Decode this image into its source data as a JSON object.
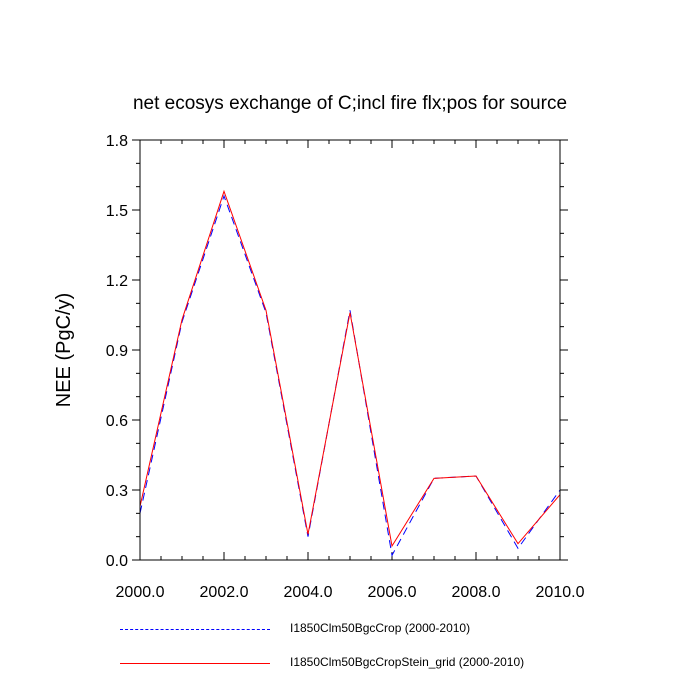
{
  "chart_data": {
    "type": "line",
    "title": "net ecosys exchange of C;incl fire flx;pos for source",
    "xlabel": "",
    "ylabel": "NEE  (PgC/y)",
    "xlim": [
      2000,
      2010
    ],
    "ylim": [
      0,
      1.8
    ],
    "xticks": [
      "2000.0",
      "2002.0",
      "2004.0",
      "2006.0",
      "2008.0",
      "2010.0"
    ],
    "yticks": [
      "0.0",
      "0.3",
      "0.6",
      "0.9",
      "1.2",
      "1.5",
      "1.8"
    ],
    "grid": false,
    "legend_position": "bottom",
    "series": [
      {
        "name": "I1850Clm50BgcCrop (2000-2010)",
        "color": "#0000ff",
        "style": "dashed",
        "x": [
          2000.0,
          2001.0,
          2002.0,
          2003.0,
          2004.0,
          2005.0,
          2006.0,
          2007.0,
          2008.0,
          2009.0,
          2010.0
        ],
        "y": [
          0.2,
          1.02,
          1.56,
          1.06,
          0.1,
          1.07,
          0.02,
          0.35,
          0.36,
          0.05,
          0.3
        ]
      },
      {
        "name": "I1850Clm50BgcCropStein_grid (2000-2010)",
        "color": "#ff0000",
        "style": "solid",
        "x": [
          2000.0,
          2001.0,
          2002.0,
          2003.0,
          2004.0,
          2005.0,
          2006.0,
          2007.0,
          2008.0,
          2009.0,
          2010.0
        ],
        "y": [
          0.23,
          1.03,
          1.58,
          1.07,
          0.11,
          1.06,
          0.06,
          0.35,
          0.36,
          0.07,
          0.28
        ]
      }
    ]
  }
}
